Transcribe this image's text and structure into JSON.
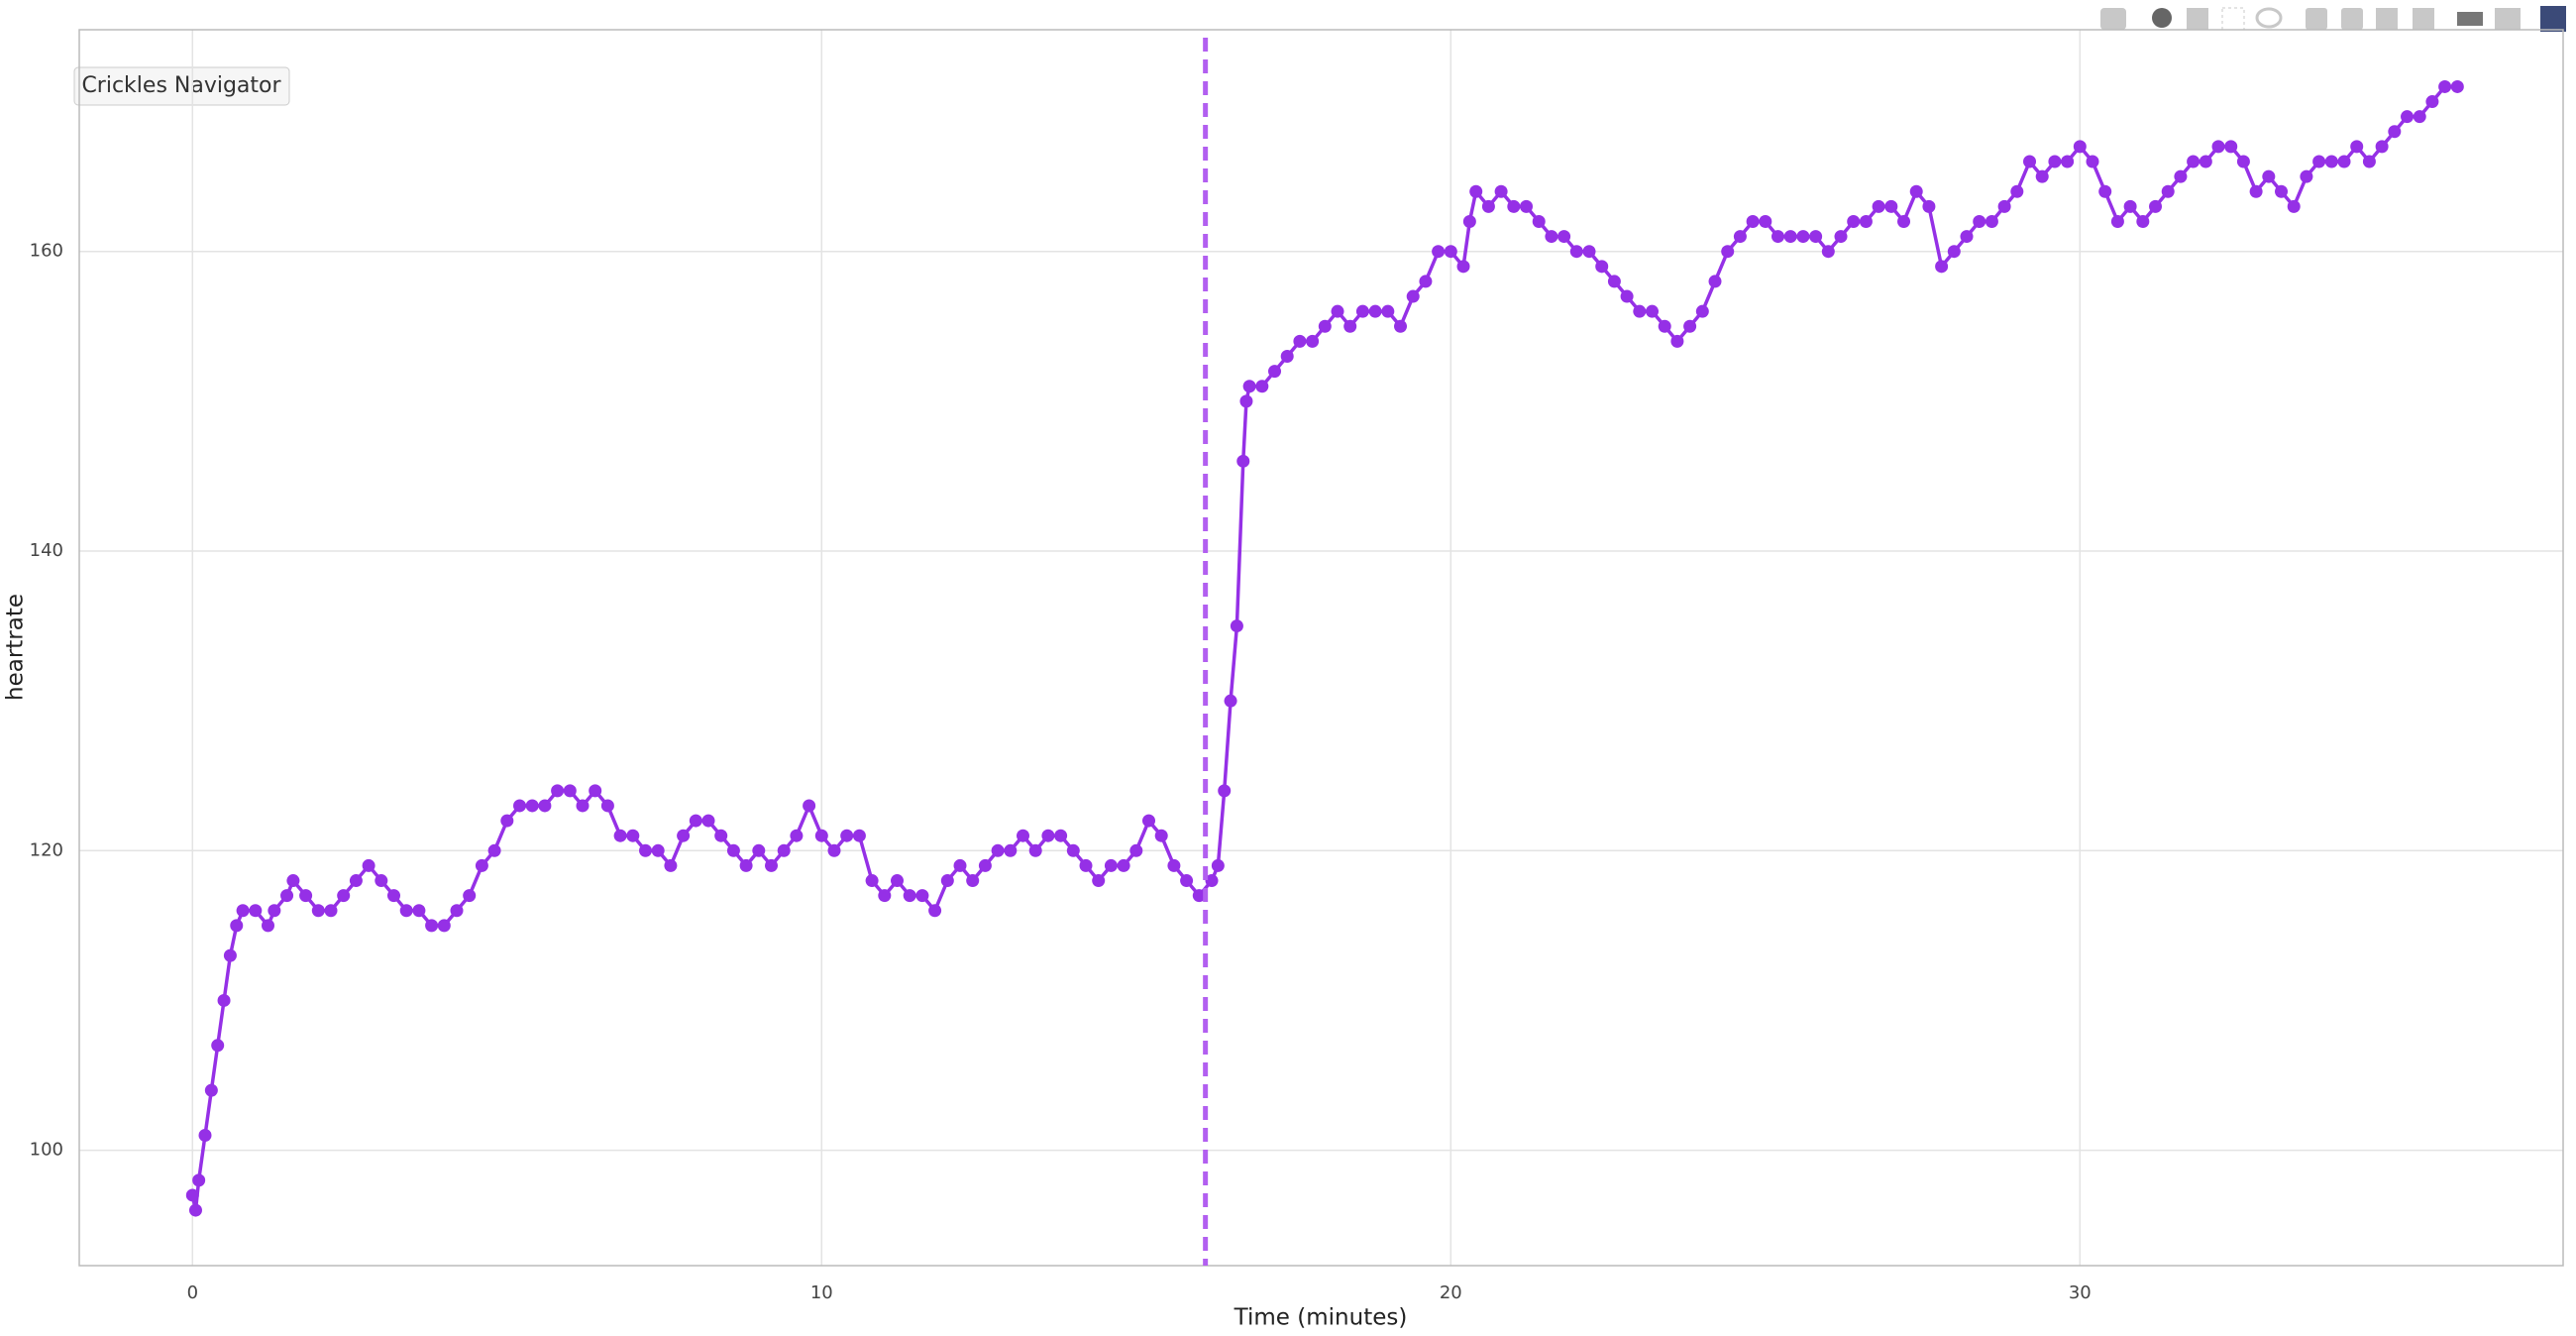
{
  "ui": {
    "navigator_button": "Crickles Navigator"
  },
  "chart_data": {
    "type": "line",
    "x_label": "Time (minutes)",
    "y_label": "heartrate",
    "x": [
      0,
      0.05,
      0.1,
      0.2,
      0.3,
      0.4,
      0.5,
      0.6,
      0.7,
      0.8,
      1.0,
      1.2,
      1.3,
      1.5,
      1.6,
      1.8,
      2.0,
      2.2,
      2.4,
      2.6,
      2.8,
      3.0,
      3.2,
      3.4,
      3.6,
      3.8,
      4.0,
      4.2,
      4.4,
      4.6,
      4.8,
      5.0,
      5.2,
      5.4,
      5.6,
      5.8,
      6.0,
      6.2,
      6.4,
      6.6,
      6.8,
      7.0,
      7.2,
      7.4,
      7.6,
      7.8,
      8.0,
      8.2,
      8.4,
      8.6,
      8.8,
      9.0,
      9.2,
      9.4,
      9.6,
      9.8,
      10.0,
      10.2,
      10.4,
      10.6,
      10.8,
      11.0,
      11.2,
      11.4,
      11.6,
      11.8,
      12.0,
      12.2,
      12.4,
      12.6,
      12.8,
      13.0,
      13.2,
      13.4,
      13.6,
      13.8,
      14.0,
      14.2,
      14.4,
      14.6,
      14.8,
      15.0,
      15.2,
      15.4,
      15.6,
      15.8,
      16.0,
      16.2,
      16.3,
      16.4,
      16.5,
      16.6,
      16.7,
      16.75,
      16.8,
      17.0,
      17.2,
      17.4,
      17.6,
      17.8,
      18.0,
      18.2,
      18.4,
      18.6,
      18.8,
      19.0,
      19.2,
      19.4,
      19.6,
      19.8,
      20.0,
      20.2,
      20.3,
      20.4,
      20.6,
      20.8,
      21.0,
      21.2,
      21.4,
      21.6,
      21.8,
      22.0,
      22.2,
      22.4,
      22.6,
      22.8,
      23.0,
      23.2,
      23.4,
      23.6,
      23.8,
      24.0,
      24.2,
      24.4,
      24.6,
      24.8,
      25.0,
      25.2,
      25.4,
      25.6,
      25.8,
      26.0,
      26.2,
      26.4,
      26.6,
      26.8,
      27.0,
      27.2,
      27.4,
      27.6,
      27.8,
      28.0,
      28.2,
      28.4,
      28.6,
      28.8,
      29.0,
      29.2,
      29.4,
      29.6,
      29.8,
      30.0,
      30.2,
      30.4,
      30.6,
      30.8,
      31.0,
      31.2,
      31.4,
      31.6,
      31.8,
      32.0,
      32.2,
      32.4,
      32.6,
      32.8,
      33.0,
      33.2,
      33.4,
      33.6,
      33.8,
      34.0,
      34.2,
      34.4,
      34.6,
      34.8,
      35.0,
      35.2,
      35.4,
      35.6,
      35.8,
      36.0
    ],
    "series": [
      {
        "color": "#9530e6",
        "values": [
          97,
          96,
          98,
          101,
          104,
          107,
          110,
          113,
          115,
          116,
          116,
          115,
          116,
          117,
          118,
          117,
          116,
          116,
          117,
          118,
          119,
          118,
          117,
          116,
          116,
          115,
          115,
          116,
          117,
          119,
          120,
          122,
          123,
          123,
          123,
          124,
          124,
          123,
          124,
          123,
          121,
          121,
          120,
          120,
          119,
          121,
          122,
          122,
          121,
          120,
          119,
          120,
          119,
          120,
          121,
          123,
          121,
          120,
          121,
          121,
          118,
          117,
          118,
          117,
          117,
          116,
          118,
          119,
          118,
          119,
          120,
          120,
          121,
          120,
          121,
          121,
          120,
          119,
          118,
          119,
          119,
          120,
          122,
          121,
          119,
          118,
          117,
          118,
          119,
          124,
          130,
          135,
          146,
          150,
          151,
          151,
          152,
          153,
          154,
          154,
          155,
          156,
          155,
          156,
          156,
          156,
          155,
          157,
          158,
          160,
          160,
          159,
          162,
          164,
          163,
          164,
          163,
          163,
          162,
          161,
          161,
          160,
          160,
          159,
          158,
          157,
          156,
          156,
          155,
          154,
          155,
          156,
          158,
          160,
          161,
          162,
          162,
          161,
          161,
          161,
          161,
          160,
          161,
          162,
          162,
          163,
          163,
          162,
          164,
          163,
          159,
          160,
          161,
          162,
          162,
          163,
          164,
          166,
          165,
          166,
          166,
          167,
          166,
          164,
          162,
          163,
          162,
          163,
          164,
          165,
          166,
          166,
          167,
          167,
          166,
          164,
          165,
          164,
          163,
          165,
          166,
          166,
          166,
          167,
          166,
          167,
          168,
          169,
          169,
          170,
          171,
          171
        ]
      }
    ],
    "reference_line": {
      "x": 16.1,
      "color": "#b25ff0"
    },
    "xlim": [
      -1.8,
      37.68
    ],
    "ylim": [
      92.3,
      174.8
    ],
    "xticks": [
      0,
      10,
      20,
      30
    ],
    "yticks": [
      100,
      120,
      140,
      160
    ],
    "grid": true
  }
}
